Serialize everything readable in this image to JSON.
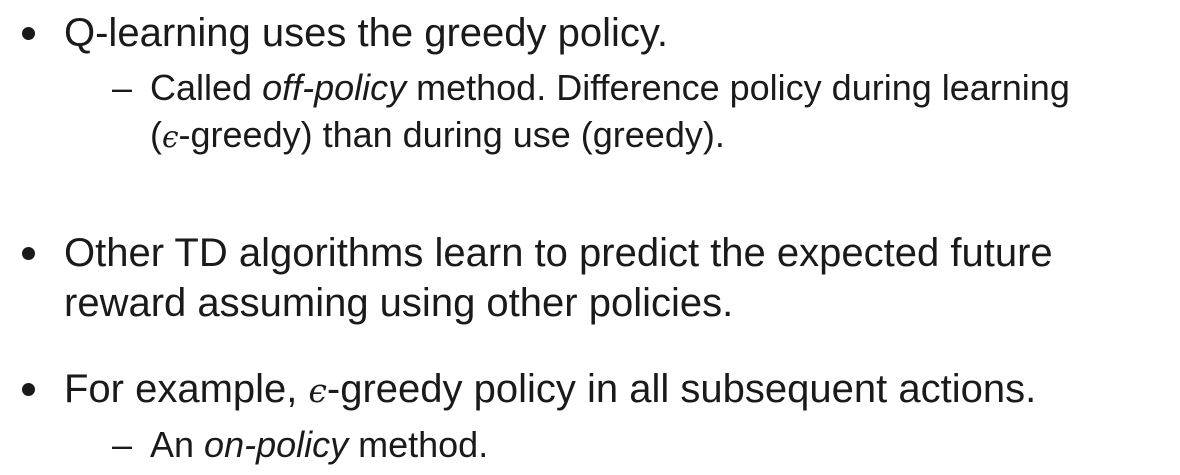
{
  "bullets": [
    {
      "line1": "Q-learning uses the greedy policy.",
      "sub": {
        "dash": "–",
        "line1_a": "Called ",
        "line1_em": "off-policy",
        "line1_b": " method. Difference policy during learning",
        "line2_a": "(",
        "line2_eps": "ϵ",
        "line2_b": "-greedy) than during use (greedy)."
      }
    },
    {
      "line1": "Other TD algorithms learn to predict the expected future",
      "line2": "reward assuming using other policies."
    },
    {
      "line1_a": "For example, ",
      "line1_eps": "ϵ",
      "line1_b": "-greedy policy in all subsequent actions.",
      "sub": {
        "dash": "–",
        "a": "An ",
        "em": "on-policy",
        "b": " method."
      }
    }
  ]
}
